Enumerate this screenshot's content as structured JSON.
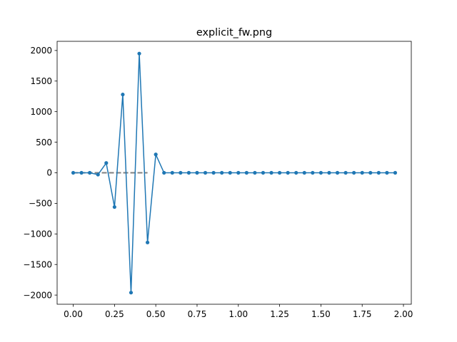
{
  "chart_data": {
    "type": "line",
    "title": "explicit_fw.png",
    "xlabel": "",
    "ylabel": "",
    "xlim": [
      -0.0975,
      2.0475
    ],
    "ylim": [
      -2150,
      2150
    ],
    "x_ticks": [
      0.0,
      0.25,
      0.5,
      0.75,
      1.0,
      1.25,
      1.5,
      1.75,
      2.0
    ],
    "x_tick_labels": [
      "0.00",
      "0.25",
      "0.50",
      "0.75",
      "1.00",
      "1.25",
      "1.50",
      "1.75",
      "2.00"
    ],
    "y_ticks": [
      -2000,
      -1500,
      -1000,
      -500,
      0,
      500,
      1000,
      1500,
      2000
    ],
    "y_tick_labels": [
      "−2000",
      "−1500",
      "−1000",
      "−500",
      "0",
      "500",
      "1000",
      "1500",
      "2000"
    ],
    "grid": false,
    "colors": {
      "series": "#1f77b4",
      "reference": "#7f7f7f"
    },
    "reference_line": {
      "x": [
        0.0,
        0.45
      ],
      "y": [
        0,
        0
      ]
    },
    "series": [
      {
        "marker": "circle",
        "x": [
          0.0,
          0.05,
          0.1,
          0.15,
          0.2,
          0.25,
          0.3,
          0.35,
          0.4,
          0.45,
          0.5,
          0.55,
          0.6,
          0.65,
          0.7,
          0.75,
          0.8,
          0.85,
          0.9,
          0.95,
          1.0,
          1.05,
          1.1,
          1.15,
          1.2,
          1.25,
          1.3,
          1.35,
          1.4,
          1.45,
          1.5,
          1.55,
          1.6,
          1.65,
          1.7,
          1.75,
          1.8,
          1.85,
          1.9,
          1.95
        ],
        "y": [
          0,
          0,
          0,
          -30,
          160,
          -560,
          1280,
          -1960,
          1950,
          -1140,
          300,
          0,
          0,
          0,
          0,
          0,
          0,
          0,
          0,
          0,
          0,
          0,
          0,
          0,
          0,
          0,
          0,
          0,
          0,
          0,
          0,
          0,
          0,
          0,
          0,
          0,
          0,
          0,
          0,
          0
        ]
      }
    ]
  }
}
